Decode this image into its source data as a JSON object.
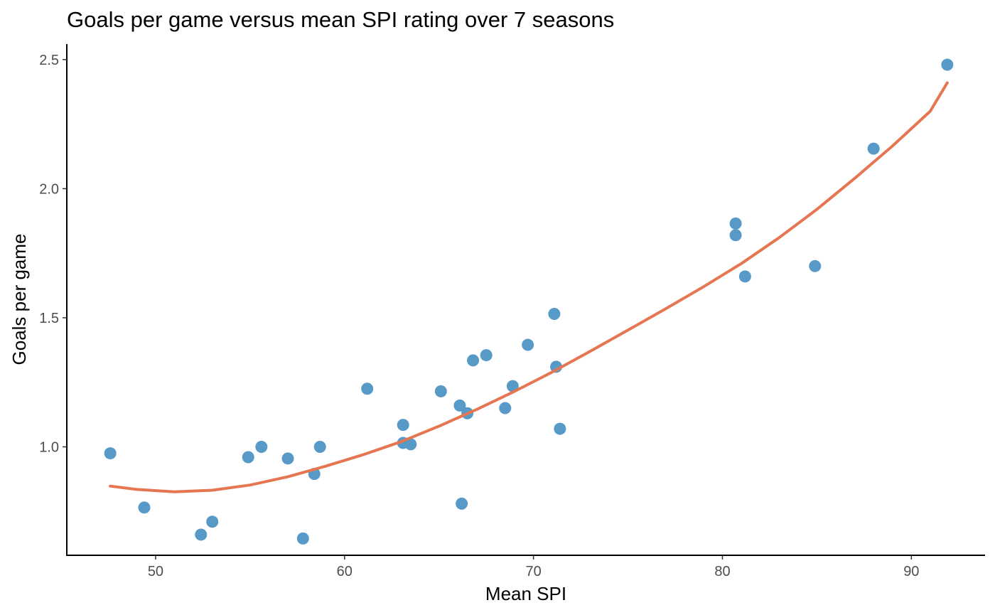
{
  "chart_data": {
    "type": "scatter",
    "title": "Goals per game versus mean SPI rating over 7 seasons",
    "xlabel": "Mean SPI",
    "ylabel": "Goals per game",
    "xlim": [
      45.3,
      93.9
    ],
    "ylim": [
      0.58,
      2.56
    ],
    "x_ticks": [
      50,
      60,
      70,
      80,
      90
    ],
    "x_tick_labels": [
      "50",
      "60",
      "70",
      "80",
      "90"
    ],
    "y_ticks": [
      1.0,
      1.5,
      2.0,
      2.5
    ],
    "y_tick_labels": [
      "1.0",
      "1.5",
      "2.0",
      "2.5"
    ],
    "grid": false,
    "legend": "none",
    "points": [
      {
        "x": 47.6,
        "y": 0.975
      },
      {
        "x": 49.4,
        "y": 0.765
      },
      {
        "x": 52.4,
        "y": 0.66
      },
      {
        "x": 53.0,
        "y": 0.71
      },
      {
        "x": 54.9,
        "y": 0.96
      },
      {
        "x": 55.6,
        "y": 1.0
      },
      {
        "x": 57.0,
        "y": 0.955
      },
      {
        "x": 57.8,
        "y": 0.645
      },
      {
        "x": 58.4,
        "y": 0.895
      },
      {
        "x": 58.7,
        "y": 1.0
      },
      {
        "x": 61.2,
        "y": 1.225
      },
      {
        "x": 63.1,
        "y": 1.085
      },
      {
        "x": 63.1,
        "y": 1.015
      },
      {
        "x": 63.5,
        "y": 1.01
      },
      {
        "x": 65.1,
        "y": 1.215
      },
      {
        "x": 66.1,
        "y": 1.16
      },
      {
        "x": 66.2,
        "y": 0.78
      },
      {
        "x": 66.5,
        "y": 1.13
      },
      {
        "x": 66.8,
        "y": 1.335
      },
      {
        "x": 67.5,
        "y": 1.355
      },
      {
        "x": 68.5,
        "y": 1.15
      },
      {
        "x": 68.9,
        "y": 1.235
      },
      {
        "x": 69.7,
        "y": 1.395
      },
      {
        "x": 71.1,
        "y": 1.515
      },
      {
        "x": 71.2,
        "y": 1.31
      },
      {
        "x": 71.4,
        "y": 1.07
      },
      {
        "x": 80.7,
        "y": 1.865
      },
      {
        "x": 80.7,
        "y": 1.82
      },
      {
        "x": 81.2,
        "y": 1.66
      },
      {
        "x": 84.9,
        "y": 1.7
      },
      {
        "x": 88.0,
        "y": 2.155
      },
      {
        "x": 91.9,
        "y": 2.48
      }
    ],
    "trend_line": {
      "x": [
        47.6,
        49,
        51,
        53,
        55,
        57,
        59,
        61,
        63,
        65,
        67,
        69,
        71,
        73,
        75,
        77,
        79,
        81,
        83,
        85,
        87,
        89,
        91,
        91.9
      ],
      "y": [
        0.848,
        0.835,
        0.826,
        0.832,
        0.852,
        0.884,
        0.925,
        0.97,
        1.02,
        1.08,
        1.145,
        1.215,
        1.29,
        1.37,
        1.452,
        1.535,
        1.62,
        1.71,
        1.81,
        1.92,
        2.04,
        2.165,
        2.3,
        2.41
      ]
    },
    "point_color": "#5799c7",
    "line_color": "#e57651"
  }
}
